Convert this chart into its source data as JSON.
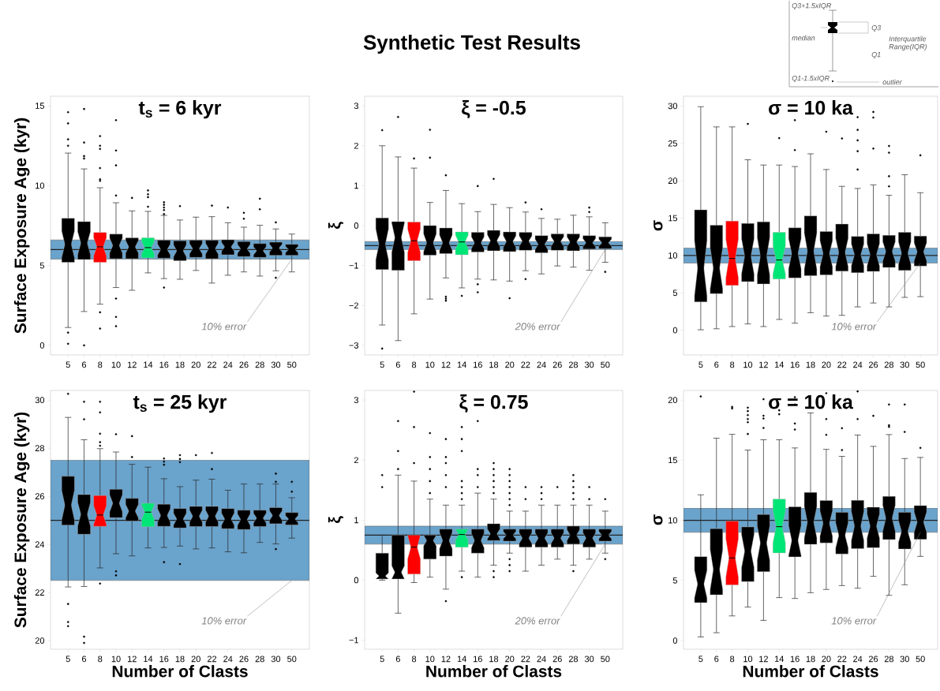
{
  "chart_data": [
    {
      "type": "box",
      "title": "t$_{s}$ = 6 kyr",
      "ylabel": "Surface Exposure Age (kyr)",
      "categories": [
        "5",
        "6",
        "8",
        "10",
        "12",
        "14",
        "16",
        "18",
        "20",
        "22",
        "24",
        "26",
        "28",
        "30",
        "50"
      ],
      "ylim": [
        -0.6,
        15.6
      ],
      "yticks": [
        0,
        5,
        10,
        15
      ],
      "colors": [
        "#000000",
        "#000000",
        "#ff0000",
        "#000000",
        "#000000",
        "#00e676",
        "#000000",
        "#000000",
        "#000000",
        "#000000",
        "#000000",
        "#000000",
        "#000000",
        "#000000",
        "#000000"
      ],
      "bands": [
        {
          "axis": "y",
          "from": 5.4,
          "to": 6.6,
          "color": "#6aa3cc"
        }
      ],
      "ref_lines": [
        {
          "axis": "y",
          "value": 6
        }
      ],
      "annotations": [
        {
          "text": "10% error",
          "x": "50",
          "y": 5.4
        }
      ],
      "boxes": [
        {
          "low": 1.12,
          "q1": 5.2,
          "median": 6.33,
          "q3": 7.96,
          "high": 12.04,
          "outliers": [
            14.6,
            13.9,
            12.9,
            12.5,
            0.8,
            0.1
          ]
        },
        {
          "low": 2.12,
          "q1": 5.38,
          "median": 6.4,
          "q3": 7.75,
          "high": 11.05,
          "outliers": [
            14.8,
            12.7,
            11.85,
            11.7,
            0
          ]
        },
        {
          "low": 2.58,
          "q1": 5.2,
          "median": 6.17,
          "q3": 7.07,
          "high": 9.87,
          "outliers": [
            13.1,
            12.5,
            12.3,
            11.1,
            10.4,
            10.3,
            2.07,
            1.05
          ]
        },
        {
          "low": 3.62,
          "q1": 5.43,
          "median": 6.25,
          "q3": 6.97,
          "high": 8.93,
          "outliers": [
            14.1,
            12.2,
            11.27,
            9.38,
            2.93,
            1.78,
            1.2
          ]
        },
        {
          "low": 3.45,
          "q1": 5.43,
          "median": 6.17,
          "q3": 6.73,
          "high": 8.42,
          "outliers": [
            9.23
          ]
        },
        {
          "low": 4.54,
          "q1": 5.48,
          "median": 6.12,
          "q3": 6.74,
          "high": 8.39,
          "outliers": [
            9.7,
            9.46,
            9.28,
            8.68
          ]
        },
        {
          "low": 4.18,
          "q1": 5.46,
          "median": 6.0,
          "q3": 6.58,
          "high": 8.14,
          "outliers": [
            8.96,
            8.8,
            8.63,
            8.47,
            8.22,
            3.62
          ]
        },
        {
          "low": 4.14,
          "q1": 5.3,
          "median": 5.92,
          "q3": 6.55,
          "high": 7.85,
          "outliers": [
            8.72
          ]
        },
        {
          "low": 4.69,
          "q1": 5.51,
          "median": 6.05,
          "q3": 6.58,
          "high": 8.03
        },
        {
          "low": 3.9,
          "q1": 5.43,
          "median": 6.05,
          "q3": 6.58,
          "high": 8.06,
          "outliers": [
            8.75
          ]
        },
        {
          "low": 4.39,
          "q1": 5.67,
          "median": 6.17,
          "q3": 6.61,
          "high": 7.68,
          "outliers": [
            8.63
          ]
        },
        {
          "low": 4.6,
          "q1": 5.56,
          "median": 6.04,
          "q3": 6.5,
          "high": 7.4,
          "outliers": [
            8.3,
            7.93
          ]
        },
        {
          "low": 4.34,
          "q1": 5.51,
          "median": 5.92,
          "q3": 6.37,
          "high": 7.52,
          "outliers": [
            9.18,
            8.52
          ]
        },
        {
          "low": 4.67,
          "q1": 5.64,
          "median": 6.09,
          "q3": 6.46,
          "high": 7.29,
          "outliers": [
            7.7,
            4.23
          ]
        },
        {
          "low": 4.6,
          "q1": 5.64,
          "median": 6.0,
          "q3": 6.33,
          "high": 6.97
        }
      ]
    },
    {
      "type": "box",
      "title": "ξ = -0.5",
      "ylabel": "ξ",
      "categories": [
        "5",
        "6",
        "8",
        "10",
        "12",
        "14",
        "16",
        "18",
        "20",
        "22",
        "24",
        "26",
        "28",
        "30",
        "50"
      ],
      "ylim": [
        -3.24,
        3.24
      ],
      "yticks": [
        {
          "value": -3,
          "label": "−3"
        },
        {
          "value": -2,
          "label": "−2"
        },
        {
          "value": -1,
          "label": "−1"
        },
        0,
        1,
        2,
        3
      ],
      "colors": [
        "#000000",
        "#000000",
        "#ff0000",
        "#000000",
        "#000000",
        "#00e676",
        "#000000",
        "#000000",
        "#000000",
        "#000000",
        "#000000",
        "#000000",
        "#000000",
        "#000000",
        "#000000"
      ],
      "bands": [
        {
          "axis": "y",
          "from": -0.6,
          "to": -0.4,
          "color": "#6aa3cc"
        }
      ],
      "ref_lines": [
        {
          "axis": "y",
          "value": -0.5
        }
      ],
      "annotations": [
        {
          "text": "20% error",
          "x": "50",
          "y": -0.6
        }
      ],
      "boxes": [
        {
          "low": -2.49,
          "q1": -1.1,
          "median": -0.47,
          "q3": 0.19,
          "high": 2.0,
          "outliers": [
            2.39,
            -3.08
          ]
        },
        {
          "low": -2.88,
          "q1": -1.12,
          "median": -0.3,
          "q3": 0.1,
          "high": 1.72,
          "outliers": [
            2.72
          ]
        },
        {
          "low": -2.21,
          "q1": -0.88,
          "median": -0.38,
          "q3": 0.09,
          "high": 1.44,
          "outliers": [
            1.68
          ]
        },
        {
          "low": -1.84,
          "q1": -0.74,
          "median": -0.43,
          "q3": 0.0,
          "high": 0.58,
          "outliers": [
            2.4,
            1.7
          ]
        },
        {
          "low": -1.31,
          "q1": -0.7,
          "median": -0.43,
          "q3": -0.06,
          "high": 0.88,
          "outliers": [
            1.26,
            -1.78,
            -1.83,
            -1.88
          ]
        },
        {
          "low": -1.56,
          "q1": -0.73,
          "median": -0.41,
          "q3": -0.16,
          "high": 0.55,
          "outliers": [
            -1.76
          ]
        },
        {
          "low": -1.34,
          "q1": -0.66,
          "median": -0.43,
          "q3": -0.17,
          "high": 0.35,
          "outliers": [
            0.99,
            -1.47,
            -1.67
          ]
        },
        {
          "low": -1.36,
          "q1": -0.63,
          "median": -0.38,
          "q3": -0.12,
          "high": 0.53,
          "outliers": [
            1.17
          ]
        },
        {
          "low": -1.39,
          "q1": -0.65,
          "median": -0.4,
          "q3": -0.16,
          "high": 0.45,
          "outliers": [
            -1.82
          ]
        },
        {
          "low": -1.13,
          "q1": -0.62,
          "median": -0.39,
          "q3": -0.17,
          "high": 0.34,
          "outliers": [
            0.58,
            -1.34
          ]
        },
        {
          "low": -1.21,
          "q1": -0.68,
          "median": -0.47,
          "q3": -0.25,
          "high": 0.18,
          "outliers": [
            0.41
          ]
        },
        {
          "low": -1.01,
          "q1": -0.62,
          "median": -0.4,
          "q3": -0.21,
          "high": 0.16
        },
        {
          "low": -1.04,
          "q1": -0.63,
          "median": -0.41,
          "q3": -0.21,
          "high": 0.26
        },
        {
          "low": -1.12,
          "q1": -0.59,
          "median": -0.43,
          "q3": -0.25,
          "high": 0.22,
          "outliers": [
            0.45,
            0.34
          ]
        },
        {
          "low": -0.92,
          "q1": -0.58,
          "median": -0.43,
          "q3": -0.28,
          "high": 0.07,
          "outliers": [
            -1.16
          ]
        }
      ]
    },
    {
      "type": "box",
      "title": "σ = 10 ka",
      "ylabel": "σ",
      "categories": [
        "5",
        "6",
        "8",
        "10",
        "12",
        "14",
        "16",
        "18",
        "20",
        "22",
        "24",
        "26",
        "28",
        "30",
        "50"
      ],
      "ylim": [
        -3.3,
        31.3
      ],
      "yticks": [
        0,
        5,
        10,
        15,
        20,
        25,
        30
      ],
      "colors": [
        "#000000",
        "#000000",
        "#ff0000",
        "#000000",
        "#000000",
        "#00e676",
        "#000000",
        "#000000",
        "#000000",
        "#000000",
        "#000000",
        "#000000",
        "#000000",
        "#000000",
        "#000000"
      ],
      "bands": [
        {
          "axis": "y",
          "from": 9,
          "to": 11,
          "color": "#6aa3cc"
        }
      ],
      "ref_lines": [
        {
          "axis": "y",
          "value": 10
        }
      ],
      "annotations": [
        {
          "text": "10% error",
          "x": "50",
          "y": 9
        }
      ],
      "boxes": [
        {
          "low": 0.07,
          "q1": 3.8,
          "median": 8.3,
          "q3": 16.1,
          "high": 29.9
        },
        {
          "low": 0.2,
          "q1": 4.9,
          "median": 8.3,
          "q3": 14.05,
          "high": 27.2
        },
        {
          "low": 0.5,
          "q1": 6.0,
          "median": 9.6,
          "q3": 14.6,
          "high": 27.2
        },
        {
          "low": 0.85,
          "q1": 6.5,
          "median": 9.9,
          "q3": 14.3,
          "high": 22.8,
          "outliers": [
            27.6
          ]
        },
        {
          "low": 0.5,
          "q1": 6.2,
          "median": 9.9,
          "q3": 14.5,
          "high": 22.1
        },
        {
          "low": 1.45,
          "q1": 6.85,
          "median": 9.4,
          "q3": 13.1,
          "high": 22.1,
          "outliers": [
            25.7
          ]
        },
        {
          "low": 0.95,
          "q1": 7.0,
          "median": 10.25,
          "q3": 13.7,
          "high": 21.9,
          "outliers": [
            28.1,
            24.1
          ]
        },
        {
          "low": 2.35,
          "q1": 7.3,
          "median": 10.6,
          "q3": 15.3,
          "high": 23.6
        },
        {
          "low": 1.9,
          "q1": 7.4,
          "median": 10.25,
          "q3": 13.2,
          "high": 21.5,
          "outliers": [
            26.55
          ]
        },
        {
          "low": 2.0,
          "q1": 7.9,
          "median": 10.4,
          "q3": 14.2,
          "high": 19.25,
          "outliers": [
            25.65
          ]
        },
        {
          "low": 3.13,
          "q1": 7.7,
          "median": 10.1,
          "q3": 12.55,
          "high": 18.97,
          "outliers": [
            28.5,
            26.8,
            25.4,
            23.95,
            21.5
          ]
        },
        {
          "low": 3.65,
          "q1": 7.87,
          "median": 10.1,
          "q3": 12.9,
          "high": 19.45,
          "outliers": [
            29.2,
            28.45,
            24.3
          ]
        },
        {
          "low": 3.13,
          "q1": 8.4,
          "median": 10.55,
          "q3": 12.7,
          "high": 18.05,
          "outliers": [
            24.65,
            23.75,
            20.6,
            19.25
          ]
        },
        {
          "low": 4.4,
          "q1": 8.0,
          "median": 10.3,
          "q3": 13.1,
          "high": 20.8
        },
        {
          "low": 4.5,
          "q1": 8.6,
          "median": 10.5,
          "q3": 12.6,
          "high": 18.4,
          "outliers": [
            23.4
          ]
        }
      ]
    },
    {
      "type": "box",
      "title": "t$_{s}$ = 25 kyr",
      "ylabel": "Surface Exposure Age (kyr)",
      "xlabel": "Number of Clasts",
      "categories": [
        "5",
        "6",
        "8",
        "10",
        "12",
        "14",
        "16",
        "18",
        "20",
        "22",
        "24",
        "26",
        "28",
        "30",
        "50"
      ],
      "ylim": [
        19.64,
        30.4
      ],
      "yticks": [
        20,
        22,
        24,
        26,
        28,
        30
      ],
      "colors": [
        "#000000",
        "#000000",
        "#ff0000",
        "#000000",
        "#000000",
        "#00e676",
        "#000000",
        "#000000",
        "#000000",
        "#000000",
        "#000000",
        "#000000",
        "#000000",
        "#000000",
        "#000000"
      ],
      "bands": [
        {
          "axis": "y",
          "from": 22.5,
          "to": 27.5,
          "color": "#6aa3cc"
        }
      ],
      "ref_lines": [
        {
          "axis": "y",
          "value": 25
        }
      ],
      "annotations": [
        {
          "text": "10% error",
          "x": "50",
          "y": 22.5
        }
      ],
      "boxes": [
        {
          "low": 22.23,
          "q1": 24.8,
          "median": 25.63,
          "q3": 26.83,
          "high": 29.28,
          "outliers": [
            30.26,
            21.52,
            20.77,
            20.6
          ]
        },
        {
          "low": 22.25,
          "q1": 24.42,
          "median": 25.25,
          "q3": 26.07,
          "high": 28.35,
          "outliers": [
            29.93,
            29.2,
            20.16,
            19.9
          ]
        },
        {
          "low": 23.02,
          "q1": 24.75,
          "median": 25.22,
          "q3": 26.03,
          "high": 27.98,
          "outliers": [
            29.93,
            29.49,
            28.6,
            28.25,
            28.1,
            22.37
          ]
        },
        {
          "low": 23.61,
          "q1": 25.11,
          "median": 25.71,
          "q3": 26.29,
          "high": 27.84,
          "outliers": [
            28.58,
            22.88,
            22.71
          ]
        },
        {
          "low": 23.52,
          "q1": 24.97,
          "median": 25.38,
          "q3": 25.91,
          "high": 27.33,
          "outliers": [
            28.5,
            27.63
          ]
        },
        {
          "low": 23.85,
          "q1": 24.73,
          "median": 25.34,
          "q3": 25.71,
          "high": 27.21
        },
        {
          "low": 23.87,
          "q1": 24.75,
          "median": 25.2,
          "q3": 25.67,
          "high": 26.73,
          "outliers": [
            27.57,
            27.44,
            27.31,
            23.26
          ]
        },
        {
          "low": 23.93,
          "q1": 24.68,
          "median": 25.05,
          "q3": 25.49,
          "high": 26.4,
          "outliers": [
            27.71,
            27.55,
            27.42,
            23.18
          ]
        },
        {
          "low": 23.81,
          "q1": 24.74,
          "median": 25.17,
          "q3": 25.58,
          "high": 26.67,
          "outliers": [
            27.71
          ]
        },
        {
          "low": 23.85,
          "q1": 24.74,
          "median": 25.17,
          "q3": 25.58,
          "high": 26.71,
          "outliers": [
            27.8,
            27.13
          ]
        },
        {
          "low": 23.69,
          "q1": 24.65,
          "median": 25.05,
          "q3": 25.49,
          "high": 26.25
        },
        {
          "low": 23.65,
          "q1": 24.62,
          "median": 25.03,
          "q3": 25.42,
          "high": 26.51
        },
        {
          "low": 24.08,
          "q1": 24.74,
          "median": 25.09,
          "q3": 25.42,
          "high": 26.51
        },
        {
          "low": 24.02,
          "q1": 24.86,
          "median": 25.2,
          "q3": 25.53,
          "high": 26.51,
          "outliers": [
            26.94,
            26.6,
            23.8
          ]
        },
        {
          "low": 24.26,
          "q1": 24.81,
          "median": 25.05,
          "q3": 25.32,
          "high": 25.94,
          "outliers": [
            26.6,
            26.19
          ]
        }
      ]
    },
    {
      "type": "box",
      "title": "ξ = 0.75",
      "ylabel": "ξ",
      "xlabel": "Number of Clasts",
      "categories": [
        "5",
        "6",
        "8",
        "10",
        "12",
        "14",
        "16",
        "18",
        "20",
        "22",
        "24",
        "26",
        "28",
        "30",
        "50"
      ],
      "ylim": [
        -1.15,
        3.16
      ],
      "yticks": [
        {
          "value": -1,
          "label": "−1"
        },
        0,
        1,
        2,
        3
      ],
      "colors": [
        "#000000",
        "#000000",
        "#ff0000",
        "#000000",
        "#000000",
        "#00e676",
        "#000000",
        "#000000",
        "#000000",
        "#000000",
        "#000000",
        "#000000",
        "#000000",
        "#000000",
        "#000000"
      ],
      "bands": [
        {
          "axis": "y",
          "from": 0.6,
          "to": 0.9,
          "color": "#6aa3cc"
        }
      ],
      "ref_lines": [
        {
          "axis": "y",
          "value": 0.75
        }
      ],
      "annotations": [
        {
          "text": "20% error",
          "x": "50",
          "y": 0.6
        }
      ],
      "boxes": [
        {
          "low": 0,
          "q1": 0.02,
          "median": 0.07,
          "q3": 0.45,
          "high": 0.75,
          "outliers": [
            1.75,
            1.55
          ]
        },
        {
          "low": -0.55,
          "q1": 0.02,
          "median": 0.13,
          "q3": 0.75,
          "high": 1.75,
          "outliers": [
            2.65,
            2.15,
            1.85
          ]
        },
        {
          "low": -0.04,
          "q1": 0.1,
          "median": 0.55,
          "q3": 0.75,
          "high": 1.65,
          "outliers": [
            3.14,
            2.55,
            1.95
          ]
        },
        {
          "low": 0.05,
          "q1": 0.35,
          "median": 0.66,
          "q3": 0.75,
          "high": 1.35,
          "outliers": [
            2.45,
            2.05,
            1.85,
            1.65,
            1.45
          ]
        },
        {
          "low": -0.15,
          "q1": 0.4,
          "median": 0.66,
          "q3": 0.85,
          "high": 1.25,
          "outliers": [
            2.35,
            2.05,
            1.95,
            1.75,
            1.55,
            -0.35
          ]
        },
        {
          "low": 0.15,
          "q1": 0.55,
          "median": 0.76,
          "q3": 0.85,
          "high": 1.25,
          "outliers": [
            2.55,
            2.35,
            2.15,
            1.65,
            1.55,
            1.45,
            1.35,
            0.05
          ]
        },
        {
          "low": 0.05,
          "q1": 0.45,
          "median": 0.66,
          "q3": 0.85,
          "high": 1.45,
          "outliers": [
            2.65,
            1.85,
            1.75,
            1.55
          ]
        },
        {
          "low": 0.25,
          "q1": 0.66,
          "median": 0.77,
          "q3": 0.94,
          "high": 1.35,
          "outliers": [
            1.95,
            1.85,
            1.75,
            1.65,
            1.55,
            1.45,
            0.15,
            0.05
          ]
        },
        {
          "low": 0.45,
          "q1": 0.65,
          "median": 0.75,
          "q3": 0.85,
          "high": 1.15,
          "outliers": [
            1.85,
            1.75,
            1.65,
            1.55,
            1.45,
            1.35,
            1.25,
            0.35,
            0.25,
            0.15
          ]
        },
        {
          "low": 0.15,
          "q1": 0.55,
          "median": 0.7,
          "q3": 0.85,
          "high": 1.15,
          "outliers": [
            1.55,
            1.35
          ]
        },
        {
          "low": 0.25,
          "q1": 0.55,
          "median": 0.7,
          "q3": 0.85,
          "high": 1.25,
          "outliers": [
            1.55,
            1.45,
            1.35
          ]
        },
        {
          "low": 0.35,
          "q1": 0.55,
          "median": 0.7,
          "q3": 0.85,
          "high": 1.25,
          "outliers": [
            1.55
          ]
        },
        {
          "low": 0.25,
          "q1": 0.6,
          "median": 0.75,
          "q3": 0.9,
          "high": 1.25,
          "outliers": [
            1.75,
            1.65,
            1.55,
            1.45,
            1.35,
            0.15
          ]
        },
        {
          "low": 0.35,
          "q1": 0.55,
          "median": 0.7,
          "q3": 0.85,
          "high": 1.25,
          "outliers": [
            1.55,
            1.35
          ]
        },
        {
          "low": 0.45,
          "q1": 0.65,
          "median": 0.75,
          "q3": 0.85,
          "high": 1.15,
          "outliers": [
            1.35,
            0.35
          ]
        }
      ]
    },
    {
      "type": "box",
      "title": "σ = 10 ka",
      "ylabel": "σ",
      "xlabel": "Number of Clasts",
      "categories": [
        "5",
        "6",
        "8",
        "10",
        "12",
        "14",
        "16",
        "18",
        "20",
        "22",
        "24",
        "26",
        "28",
        "30",
        "50"
      ],
      "ylim": [
        -0.72,
        20.8
      ],
      "yticks": [
        0,
        5,
        10,
        15,
        20
      ],
      "colors": [
        "#000000",
        "#000000",
        "#ff0000",
        "#000000",
        "#000000",
        "#00e676",
        "#000000",
        "#000000",
        "#000000",
        "#000000",
        "#000000",
        "#000000",
        "#000000",
        "#000000",
        "#000000"
      ],
      "bands": [
        {
          "axis": "y",
          "from": 9,
          "to": 11,
          "color": "#6aa3cc"
        }
      ],
      "ref_lines": [
        {
          "axis": "y",
          "value": 10
        }
      ],
      "annotations": [
        {
          "text": "10% error",
          "x": "50",
          "y": 9
        }
      ],
      "boxes": [
        {
          "low": 0.3,
          "q1": 3.15,
          "median": 4.7,
          "q3": 6.98,
          "high": 12.12,
          "outliers": [
            20.3
          ]
        },
        {
          "low": 0.65,
          "q1": 3.8,
          "median": 5.9,
          "q3": 9.3,
          "high": 16.83
        },
        {
          "low": 2.05,
          "q1": 4.62,
          "median": 6.87,
          "q3": 9.93,
          "high": 17.15,
          "outliers": [
            19.43,
            19.3
          ]
        },
        {
          "low": 2.78,
          "q1": 4.9,
          "median": 7.44,
          "q3": 9.45,
          "high": 15.84,
          "outliers": [
            19.37,
            19.08,
            18.75,
            18.42,
            18.16,
            17.18
          ]
        },
        {
          "low": 1.68,
          "q1": 5.73,
          "median": 8.1,
          "q3": 10.48,
          "high": 16.7,
          "outliers": [
            20.07,
            18.7,
            18.47,
            17.68
          ]
        },
        {
          "low": 3.57,
          "q1": 7.29,
          "median": 9.47,
          "q3": 11.77,
          "high": 16.7,
          "outliers": [
            19.15,
            18.82
          ]
        },
        {
          "low": 3.5,
          "q1": 6.96,
          "median": 8.32,
          "q3": 11.12,
          "high": 16.02,
          "outliers": [
            20.24,
            19.63,
            18.05,
            17.55
          ]
        },
        {
          "low": 3.98,
          "q1": 8.0,
          "median": 9.85,
          "q3": 12.32,
          "high": 18.93
        },
        {
          "low": 4.25,
          "q1": 8.12,
          "median": 9.74,
          "q3": 11.64,
          "high": 15.9,
          "outliers": [
            20.57,
            18.42,
            17.11
          ]
        },
        {
          "low": 4.57,
          "q1": 7.2,
          "median": 8.75,
          "q3": 10.66,
          "high": 15.32,
          "outliers": [
            17.66,
            15.84
          ]
        },
        {
          "low": 4.35,
          "q1": 7.64,
          "median": 9.52,
          "q3": 11.66,
          "high": 17.09,
          "outliers": [
            20.72,
            18.42
          ]
        },
        {
          "low": 5.34,
          "q1": 7.72,
          "median": 9.52,
          "q3": 11.09,
          "high": 16.15,
          "outliers": [
            18.69
          ]
        },
        {
          "low": 3.76,
          "q1": 8.4,
          "median": 10.17,
          "q3": 11.99,
          "high": 17.13,
          "outliers": [
            19.63,
            17.9,
            17.77
          ]
        },
        {
          "low": 4.64,
          "q1": 7.62,
          "median": 9.08,
          "q3": 10.66,
          "high": 15.14,
          "outliers": [
            19.63,
            17.35
          ]
        },
        {
          "low": 7.0,
          "q1": 8.42,
          "median": 9.85,
          "q3": 11.22,
          "high": 15.23,
          "outliers": [
            16.02
          ]
        }
      ]
    },
    {
      "type": "other",
      "title": "Synthetic Test Results"
    },
    {
      "type": "other",
      "annotations": [
        "Q3+1.5xIQR",
        "median",
        "Q3",
        "Interquartile Range(IQR)",
        "Q1",
        "Q1-1.5xIQR",
        "outlier"
      ]
    }
  ]
}
